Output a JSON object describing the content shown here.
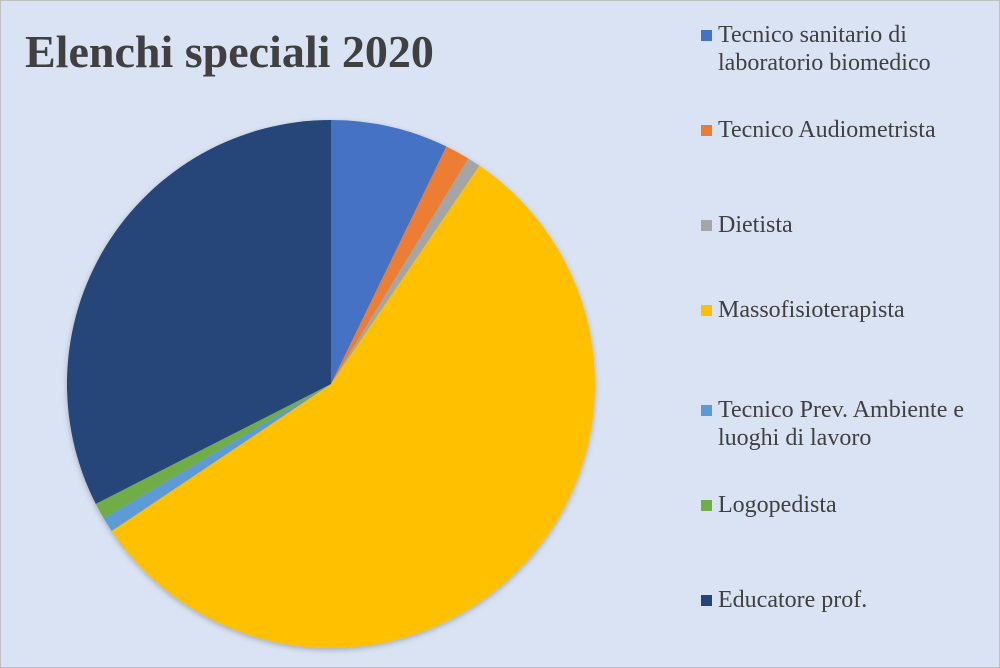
{
  "chart_data": {
    "type": "pie",
    "title": "Elenchi speciali 2020",
    "categories": [
      "Tecnico sanitario di laboratorio biomedico",
      "Tecnico Audiometrista",
      "Dietista",
      "Massofisioterapista",
      "Tecnico Prev. Ambiente e luoghi di lavoro",
      "Logopedista",
      "Educatore prof."
    ],
    "values": [
      7.2,
      1.5,
      0.8,
      56.1,
      0.9,
      1.0,
      32.5
    ],
    "colors": [
      "#4472c4",
      "#ed7d31",
      "#a5a5a5",
      "#ffc000",
      "#5b9bd5",
      "#70ad47",
      "#264478"
    ],
    "legend_position": "right"
  }
}
